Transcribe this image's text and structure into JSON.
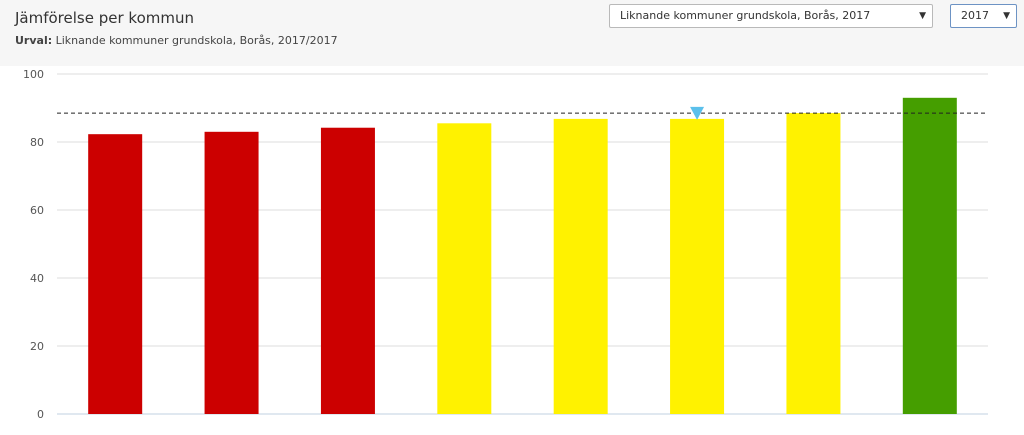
{
  "header": {
    "title": "Jämförelse per kommun",
    "subtitle_label": "Urval:",
    "subtitle_value": "Liknande kommuner grundskola, Borås, 2017/2017"
  },
  "controls": {
    "region_select": "Liknande kommuner grundskola, Borås, 2017",
    "year_select": "2017"
  },
  "colors": {
    "red": "#cc0000",
    "yellow": "#fff200",
    "green": "#459e00",
    "marker": "#5bc0eb"
  },
  "chart_data": {
    "type": "bar",
    "ylim": [
      0,
      100
    ],
    "yticks": [
      0,
      20,
      40,
      60,
      80,
      100
    ],
    "grid": true,
    "reference_line": 88.5,
    "highlight_index": 5,
    "values": [
      82.3,
      83.0,
      84.2,
      85.5,
      86.8,
      86.8,
      88.5,
      93.0
    ],
    "bar_colors": [
      "red",
      "red",
      "red",
      "yellow",
      "yellow",
      "yellow",
      "yellow",
      "green"
    ]
  }
}
